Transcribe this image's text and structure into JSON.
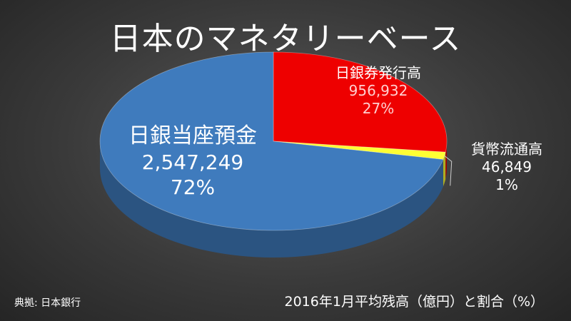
{
  "title": "日本のマネタリーベース",
  "source": "典拠: 日本銀行",
  "unit_note": "2016年1月平均残高（億円）と割合（%）",
  "chart_data": {
    "type": "pie",
    "title": "日本のマネタリーベース",
    "slices": [
      {
        "name": "日銀券発行高",
        "value": 956932,
        "value_label": "956,932",
        "percent_label": "27%",
        "color": "#ee0000"
      },
      {
        "name": "貨幣流通高",
        "value": 46849,
        "value_label": "46,849",
        "percent_label": "1%",
        "color": "#ffff33"
      },
      {
        "name": "日銀当座預金",
        "value": 2547249,
        "value_label": "2,547,249",
        "percent_label": "72%",
        "color": "#3f7bbd"
      }
    ]
  }
}
